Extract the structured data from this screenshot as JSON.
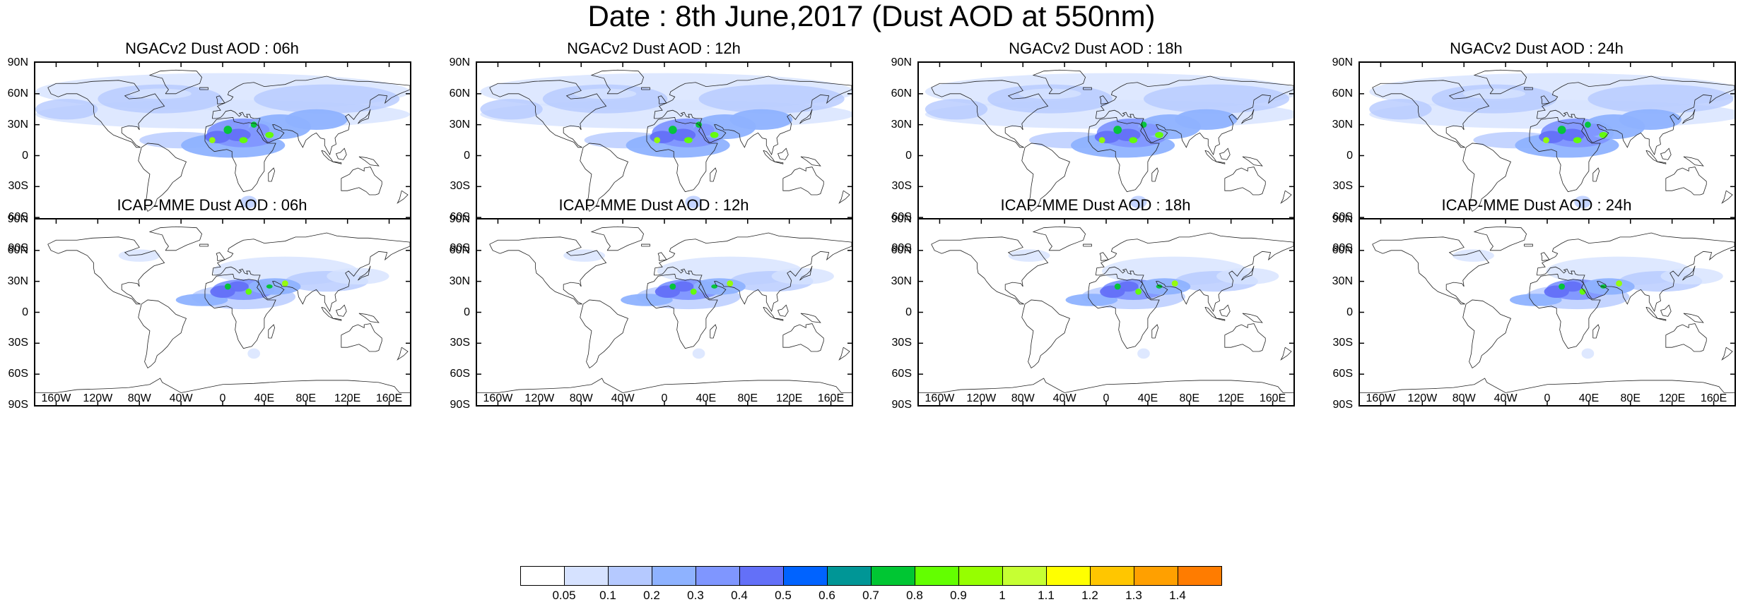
{
  "title": "Date : 8th June,2017 (Dust AOD at 550nm)",
  "y_ticks": [
    "90N",
    "60N",
    "30N",
    "0",
    "30S",
    "60S",
    "90S"
  ],
  "x_ticks": [
    "160W",
    "120W",
    "80W",
    "40W",
    "0",
    "40E",
    "80E",
    "120E",
    "160E"
  ],
  "panels": [
    {
      "title": "NGACv2 Dust AOD : 06h",
      "model": "NGACv2",
      "hour": "06h"
    },
    {
      "title": "NGACv2 Dust AOD : 12h",
      "model": "NGACv2",
      "hour": "12h"
    },
    {
      "title": "NGACv2 Dust AOD : 18h",
      "model": "NGACv2",
      "hour": "18h"
    },
    {
      "title": "NGACv2 Dust AOD : 24h",
      "model": "NGACv2",
      "hour": "24h"
    },
    {
      "title": "ICAP-MME Dust AOD : 06h",
      "model": "ICAP-MME",
      "hour": "06h"
    },
    {
      "title": "ICAP-MME Dust AOD : 12h",
      "model": "ICAP-MME",
      "hour": "12h"
    },
    {
      "title": "ICAP-MME Dust AOD : 18h",
      "model": "ICAP-MME",
      "hour": "18h"
    },
    {
      "title": "ICAP-MME Dust AOD : 24h",
      "model": "ICAP-MME",
      "hour": "24h"
    }
  ],
  "colorbar": {
    "labels": [
      "0.05",
      "0.1",
      "0.2",
      "0.3",
      "0.4",
      "0.5",
      "0.6",
      "0.7",
      "0.8",
      "0.9",
      "1",
      "1.1",
      "1.2",
      "1.3",
      "1.4"
    ],
    "colors": [
      "#ffffff",
      "#d6e2ff",
      "#b5c9ff",
      "#8eb2ff",
      "#7f96ff",
      "#6370f8",
      "#0063ff",
      "#009696",
      "#00c633",
      "#63ff00",
      "#96ff00",
      "#c6ff33",
      "#ffff00",
      "#ffc600",
      "#ffa000",
      "#ff7c00",
      "#ff1900"
    ]
  }
}
